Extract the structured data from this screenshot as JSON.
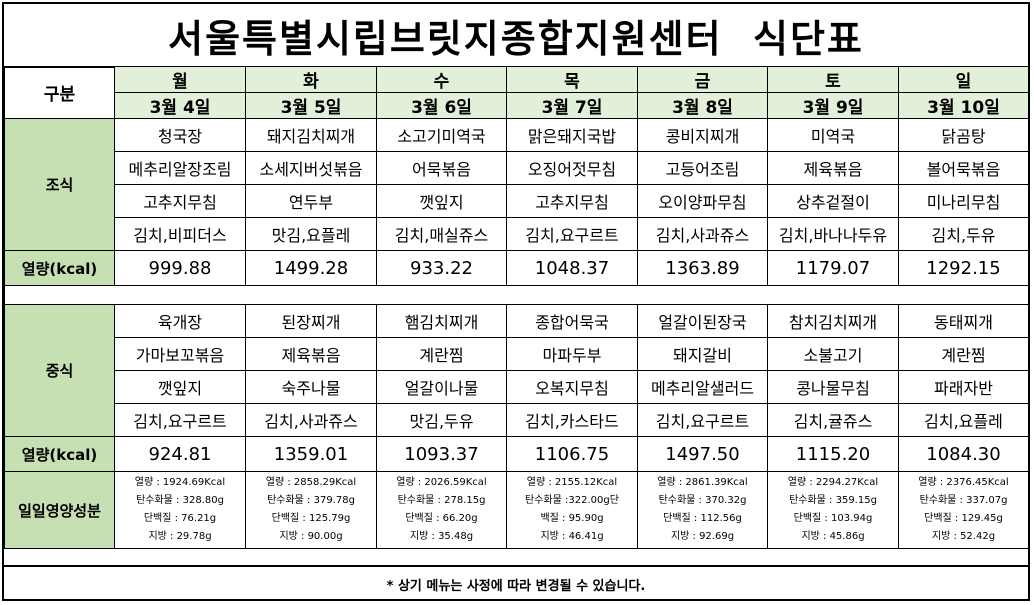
{
  "title": "서울특별시립브릿지종합지원센터  식단표",
  "header": {
    "gubun": "구분",
    "days": [
      "월",
      "화",
      "수",
      "목",
      "금",
      "토",
      "일"
    ],
    "dates": [
      "3월 4일",
      "3월 5일",
      "3월 6일",
      "3월 7일",
      "3월 8일",
      "3월 9일",
      "3월 10일"
    ]
  },
  "breakfast": {
    "label": "조식",
    "rows": [
      [
        "청국장",
        "돼지김치찌개",
        "소고기미역국",
        "맑은돼지국밥",
        "콩비지찌개",
        "미역국",
        "닭곰탕"
      ],
      [
        "메추리알장조림",
        "소세지버섯볶음",
        "어묵볶음",
        "오징어젓무침",
        "고등어조림",
        "제육볶음",
        "볼어묵볶음"
      ],
      [
        "고추지무침",
        "연두부",
        "깻잎지",
        "고추지무침",
        "오이양파무침",
        "상추겉절이",
        "미나리무침"
      ],
      [
        "김치,비피더스",
        "맛김,요플레",
        "김치,매실쥬스",
        "김치,요구르트",
        "김치,사과쥬스",
        "김치,바나나두유",
        "김치,두유"
      ]
    ],
    "cal_label": "열량(kcal)",
    "calories": [
      "999.88",
      "1499.28",
      "933.22",
      "1048.37",
      "1363.89",
      "1179.07",
      "1292.15"
    ]
  },
  "lunch": {
    "label": "중식",
    "rows": [
      [
        "육개장",
        "된장찌개",
        "햄김치찌개",
        "종합어묵국",
        "얼갈이된장국",
        "참치김치찌개",
        "동태찌개"
      ],
      [
        "가마보꼬볶음",
        "제육볶음",
        "계란찜",
        "마파두부",
        "돼지갈비",
        "소불고기",
        "계란찜"
      ],
      [
        "깻잎지",
        "숙주나물",
        "얼갈이나물",
        "오복지무침",
        "메추리알샐러드",
        "콩나물무침",
        "파래자반"
      ],
      [
        "김치,요구르트",
        "김치,사과쥬스",
        "맛김,두유",
        "김치,카스타드",
        "김치,요구르트",
        "김치,귤쥬스",
        "김치,요플레"
      ]
    ],
    "cal_label": "열량(kcal)",
    "calories": [
      "924.81",
      "1359.01",
      "1093.37",
      "1106.75",
      "1497.50",
      "1115.20",
      "1084.30"
    ]
  },
  "nutrition": {
    "label": "일일영양성분",
    "days": [
      [
        "열량 : 1924.69Kcal",
        "탄수화물 : 328.80g",
        "단백질 : 76.21g",
        "지방 : 29.78g"
      ],
      [
        "열량 : 2858.29Kcal",
        "탄수화물 : 379.78g",
        "단백질 : 125.79g",
        "지방 : 90.00g"
      ],
      [
        "열량 : 2026.59Kcal",
        "탄수화물 : 278.15g",
        "단백질 : 66.20g",
        "지방 : 35.48g"
      ],
      [
        "열량 : 2155.12Kcal",
        "탄수화물 :322.00g단",
        "백질 : 95.90g",
        "지방 : 46.41g"
      ],
      [
        "열량 : 2861.39Kcal",
        "탄수화물 : 370.32g",
        "단백질 : 112.56g",
        "지방 : 92.69g"
      ],
      [
        "열량 : 2294.27Kcal",
        "탄수화물 : 359.15g",
        "단백질 : 103.94g",
        "지방 : 45.86g"
      ],
      [
        "열량 : 2376.45Kcal",
        "탄수화물 : 337.07g",
        "단백질 : 129.45g",
        "지방 : 52.42g"
      ]
    ]
  },
  "footer": "* 상기 메뉴는 사정에 따라 변경될 수 있습니다."
}
